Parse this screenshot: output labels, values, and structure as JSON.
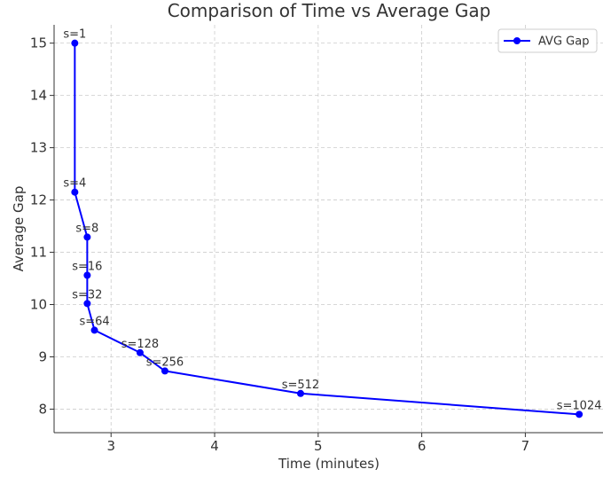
{
  "chart_data": {
    "type": "line",
    "title": "Comparison of Time vs Average Gap",
    "xlabel": "Time (minutes)",
    "ylabel": "Average Gap",
    "xlim": [
      2.45,
      7.75
    ],
    "ylim": [
      7.55,
      15.35
    ],
    "xticks": [
      3,
      4,
      5,
      6,
      7
    ],
    "yticks": [
      8,
      9,
      10,
      11,
      12,
      13,
      14,
      15
    ],
    "grid": true,
    "legend_position": "top-right",
    "series": [
      {
        "name": "AVG Gap",
        "color": "#0000ff",
        "marker": "circle",
        "points": [
          {
            "x": 2.65,
            "y": 15.0,
            "label": "s=1"
          },
          {
            "x": 2.65,
            "y": 12.15,
            "label": "s=4"
          },
          {
            "x": 2.77,
            "y": 11.29,
            "label": "s=8"
          },
          {
            "x": 2.77,
            "y": 10.56,
            "label": "s=16"
          },
          {
            "x": 2.77,
            "y": 10.02,
            "label": "s=32"
          },
          {
            "x": 2.84,
            "y": 9.51,
            "label": "s=64"
          },
          {
            "x": 3.28,
            "y": 9.08,
            "label": "s=128"
          },
          {
            "x": 3.52,
            "y": 8.73,
            "label": "s=256"
          },
          {
            "x": 4.83,
            "y": 8.3,
            "label": "s=512"
          },
          {
            "x": 7.52,
            "y": 7.9,
            "label": "s=1024"
          }
        ]
      }
    ]
  }
}
